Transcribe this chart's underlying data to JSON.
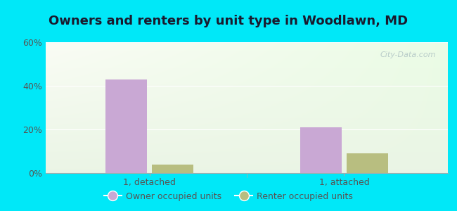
{
  "title": "Owners and renters by unit type in Woodlawn, MD",
  "categories": [
    "1, detached",
    "1, attached"
  ],
  "owner_values": [
    43,
    21
  ],
  "renter_values": [
    4,
    9
  ],
  "owner_color": "#c9a8d4",
  "renter_color": "#b8be80",
  "ylim": [
    0,
    60
  ],
  "yticks": [
    0,
    20,
    40,
    60
  ],
  "ytick_labels": [
    "0%",
    "20%",
    "40%",
    "60%"
  ],
  "bg_outer": "#00e8f8",
  "watermark": "City-Data.com",
  "bar_width": 0.32,
  "legend_owner": "Owner occupied units",
  "legend_renter": "Renter occupied units",
  "title_fontsize": 13,
  "tick_fontsize": 9,
  "legend_fontsize": 9
}
